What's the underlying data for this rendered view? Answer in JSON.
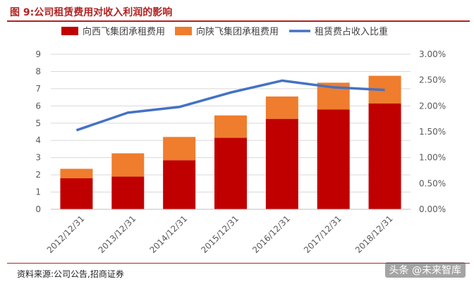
{
  "title": "图 9:公司租赁费用对收入利润的影响",
  "source": "资料来源:公司公告,招商证券",
  "watermark": "头条 @未来智库",
  "colors": {
    "series1": "#c00000",
    "series2": "#ef7d2d",
    "line": "#4472c4",
    "accent": "#b22222"
  },
  "chart_data": {
    "type": "bar",
    "stacked": true,
    "categories": [
      "2012/12/31",
      "2013/12/31",
      "2014/12/31",
      "2015/12/31",
      "2016/12/31",
      "2017/12/31",
      "2018/12/31"
    ],
    "series": [
      {
        "name": "向西飞集团承租费用",
        "type": "bar",
        "axis": "left",
        "values": [
          1.8,
          1.9,
          2.85,
          4.15,
          5.25,
          5.8,
          6.15
        ]
      },
      {
        "name": "向陕飞集团承租费用",
        "type": "bar",
        "axis": "left",
        "values": [
          0.55,
          1.35,
          1.35,
          1.3,
          1.3,
          1.55,
          1.6
        ]
      },
      {
        "name": "租赁费占收入比重",
        "type": "line",
        "axis": "right",
        "values": [
          0.0153,
          0.0187,
          0.0198,
          0.0226,
          0.0249,
          0.0236,
          0.0231
        ]
      }
    ],
    "ylim": [
      0,
      9
    ],
    "yticks": [
      "0",
      "1",
      "2",
      "3",
      "4",
      "5",
      "6",
      "7",
      "8",
      "9"
    ],
    "y2lim": [
      0,
      0.03
    ],
    "y2ticks": [
      "0.00%",
      "0.50%",
      "1.00%",
      "1.50%",
      "2.00%",
      "2.50%",
      "3.00%"
    ],
    "legend_position": "top",
    "grid": true
  }
}
